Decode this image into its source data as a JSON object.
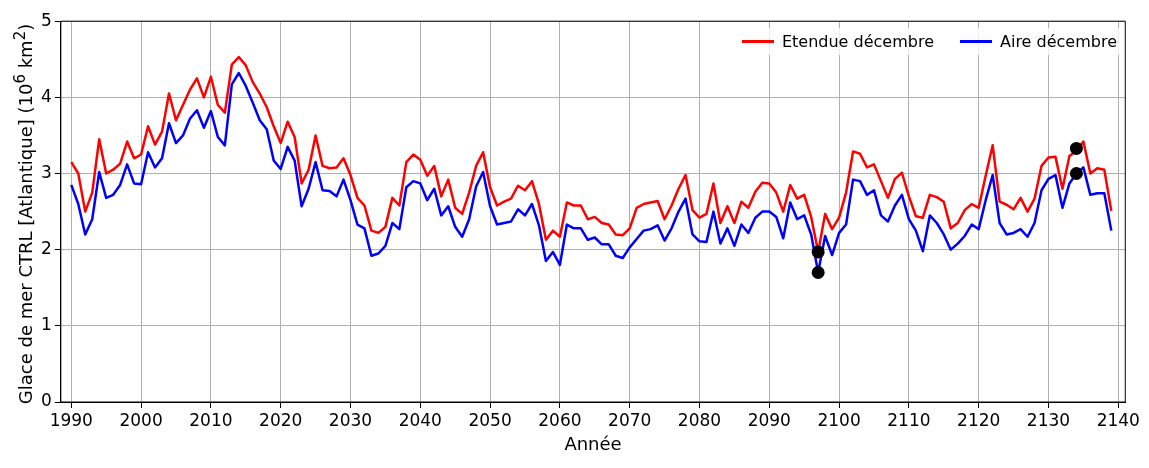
{
  "chart_data": {
    "type": "line",
    "xlabel": "Année",
    "ylabel": "Glace de mer CTRL [Atlantique] (10$^{6}$ km$^{2}$)",
    "x": [
      1990,
      1991,
      1992,
      1993,
      1994,
      1995,
      1996,
      1997,
      1998,
      1999,
      2000,
      2001,
      2002,
      2003,
      2004,
      2005,
      2006,
      2007,
      2008,
      2009,
      2010,
      2011,
      2012,
      2013,
      2014,
      2015,
      2016,
      2017,
      2018,
      2019,
      2020,
      2021,
      2022,
      2023,
      2024,
      2025,
      2026,
      2027,
      2028,
      2029,
      2030,
      2031,
      2032,
      2033,
      2034,
      2035,
      2036,
      2037,
      2038,
      2039,
      2040,
      2041,
      2042,
      2043,
      2044,
      2045,
      2046,
      2047,
      2048,
      2049,
      2050,
      2051,
      2052,
      2053,
      2054,
      2055,
      2056,
      2057,
      2058,
      2059,
      2060,
      2061,
      2062,
      2063,
      2064,
      2065,
      2066,
      2067,
      2068,
      2069,
      2070,
      2071,
      2072,
      2073,
      2074,
      2075,
      2076,
      2077,
      2078,
      2079,
      2080,
      2081,
      2082,
      2083,
      2084,
      2085,
      2086,
      2087,
      2088,
      2089,
      2090,
      2091,
      2092,
      2093,
      2094,
      2095,
      2096,
      2097,
      2098,
      2099,
      2100,
      2101,
      2102,
      2103,
      2104,
      2105,
      2106,
      2107,
      2108,
      2109,
      2110,
      2111,
      2112,
      2113,
      2114,
      2115,
      2116,
      2117,
      2118,
      2119,
      2120,
      2121,
      2122,
      2123,
      2124,
      2125,
      2126,
      2127,
      2128,
      2129,
      2130,
      2131,
      2132,
      2133,
      2134,
      2135,
      2136,
      2137,
      2138,
      2139
    ],
    "series": [
      {
        "name": "Etendue décembre",
        "color": "#ff0000",
        "values": [
          3.15,
          3.0,
          2.5,
          2.75,
          3.45,
          3.0,
          3.05,
          3.13,
          3.42,
          3.2,
          3.25,
          3.62,
          3.38,
          3.55,
          4.05,
          3.7,
          3.9,
          4.1,
          4.25,
          4.0,
          4.27,
          3.9,
          3.8,
          4.43,
          4.53,
          4.42,
          4.2,
          4.05,
          3.87,
          3.62,
          3.4,
          3.68,
          3.48,
          2.87,
          3.05,
          3.5,
          3.1,
          3.07,
          3.08,
          3.2,
          2.98,
          2.68,
          2.58,
          2.25,
          2.22,
          2.3,
          2.68,
          2.58,
          3.15,
          3.25,
          3.18,
          2.97,
          3.1,
          2.7,
          2.92,
          2.55,
          2.47,
          2.75,
          3.1,
          3.28,
          2.82,
          2.58,
          2.63,
          2.67,
          2.84,
          2.78,
          2.9,
          2.6,
          2.13,
          2.25,
          2.17,
          2.62,
          2.58,
          2.58,
          2.4,
          2.43,
          2.35,
          2.33,
          2.2,
          2.19,
          2.28,
          2.55,
          2.6,
          2.62,
          2.64,
          2.4,
          2.58,
          2.8,
          2.98,
          2.52,
          2.42,
          2.47,
          2.87,
          2.35,
          2.57,
          2.35,
          2.63,
          2.55,
          2.76,
          2.88,
          2.87,
          2.75,
          2.5,
          2.85,
          2.67,
          2.72,
          2.43,
          1.97,
          2.47,
          2.27,
          2.42,
          2.75,
          3.29,
          3.26,
          3.08,
          3.12,
          2.9,
          2.68,
          2.93,
          3.01,
          2.7,
          2.44,
          2.42,
          2.72,
          2.69,
          2.63,
          2.28,
          2.35,
          2.52,
          2.6,
          2.55,
          2.97,
          3.37,
          2.63,
          2.59,
          2.53,
          2.68,
          2.5,
          2.67,
          3.1,
          3.21,
          3.22,
          2.8,
          3.23,
          3.3,
          3.42,
          3.0,
          3.07,
          3.05,
          2.51
        ]
      },
      {
        "name": "Aire décembre",
        "color": "#0000ff",
        "values": [
          2.85,
          2.6,
          2.2,
          2.4,
          3.02,
          2.68,
          2.72,
          2.85,
          3.12,
          2.87,
          2.86,
          3.28,
          3.08,
          3.2,
          3.66,
          3.4,
          3.5,
          3.72,
          3.83,
          3.6,
          3.82,
          3.48,
          3.37,
          4.17,
          4.32,
          4.15,
          3.93,
          3.7,
          3.58,
          3.17,
          3.06,
          3.35,
          3.17,
          2.57,
          2.8,
          3.15,
          2.78,
          2.77,
          2.7,
          2.92,
          2.65,
          2.33,
          2.28,
          1.92,
          1.95,
          2.05,
          2.35,
          2.27,
          2.82,
          2.9,
          2.87,
          2.65,
          2.8,
          2.45,
          2.57,
          2.3,
          2.17,
          2.4,
          2.83,
          3.02,
          2.57,
          2.33,
          2.35,
          2.37,
          2.53,
          2.45,
          2.6,
          2.32,
          1.85,
          1.97,
          1.8,
          2.33,
          2.28,
          2.28,
          2.13,
          2.16,
          2.07,
          2.07,
          1.92,
          1.89,
          2.03,
          2.14,
          2.25,
          2.27,
          2.32,
          2.12,
          2.28,
          2.5,
          2.67,
          2.2,
          2.11,
          2.1,
          2.5,
          2.08,
          2.28,
          2.05,
          2.33,
          2.22,
          2.42,
          2.5,
          2.5,
          2.43,
          2.15,
          2.62,
          2.4,
          2.45,
          2.2,
          1.7,
          2.18,
          1.93,
          2.22,
          2.33,
          2.92,
          2.9,
          2.72,
          2.78,
          2.45,
          2.37,
          2.58,
          2.72,
          2.4,
          2.25,
          1.98,
          2.45,
          2.35,
          2.2,
          2.0,
          2.08,
          2.18,
          2.33,
          2.27,
          2.65,
          2.98,
          2.35,
          2.2,
          2.22,
          2.27,
          2.17,
          2.35,
          2.78,
          2.93,
          2.98,
          2.55,
          2.87,
          3.0,
          3.08,
          2.72,
          2.74,
          2.74,
          2.25
        ]
      },
      {
        "type": "scatter",
        "marker": "circle",
        "color": "#000000",
        "values": [
          null,
          null,
          null,
          null,
          null,
          null,
          null,
          null,
          null,
          null,
          null,
          null,
          null,
          null,
          null,
          null,
          null,
          null,
          null,
          null,
          null,
          null,
          null,
          null,
          null,
          null,
          null,
          null,
          null,
          null,
          null,
          null,
          null,
          null,
          null,
          null,
          null,
          null,
          null,
          null,
          null,
          null,
          null,
          null,
          null,
          null,
          null,
          null,
          null,
          null,
          null,
          null,
          null,
          null,
          null,
          null,
          null,
          null,
          null,
          null,
          null,
          null,
          null,
          null,
          null,
          null,
          null,
          null,
          null,
          null,
          null,
          null,
          null,
          null,
          null,
          null,
          null,
          null,
          null,
          null,
          null,
          null,
          null,
          null,
          null,
          null,
          null,
          null,
          null,
          null,
          null,
          null,
          null,
          null,
          null,
          null,
          null,
          null,
          null,
          null,
          null,
          null,
          null,
          null,
          null,
          null,
          null,
          1.97,
          null,
          null,
          null,
          null,
          null,
          null,
          null,
          null,
          null,
          null,
          null,
          null,
          null,
          null,
          null,
          null,
          null,
          null,
          null,
          null,
          null,
          null,
          null,
          null,
          null,
          null,
          null,
          null,
          null,
          null,
          null,
          null,
          null,
          null,
          null,
          null,
          3.33,
          null,
          null,
          null,
          null,
          null
        ]
      },
      {
        "type": "scatter",
        "marker": "circle",
        "color": "#000000",
        "values": [
          null,
          null,
          null,
          null,
          null,
          null,
          null,
          null,
          null,
          null,
          null,
          null,
          null,
          null,
          null,
          null,
          null,
          null,
          null,
          null,
          null,
          null,
          null,
          null,
          null,
          null,
          null,
          null,
          null,
          null,
          null,
          null,
          null,
          null,
          null,
          null,
          null,
          null,
          null,
          null,
          null,
          null,
          null,
          null,
          null,
          null,
          null,
          null,
          null,
          null,
          null,
          null,
          null,
          null,
          null,
          null,
          null,
          null,
          null,
          null,
          null,
          null,
          null,
          null,
          null,
          null,
          null,
          null,
          null,
          null,
          null,
          null,
          null,
          null,
          null,
          null,
          null,
          null,
          null,
          null,
          null,
          null,
          null,
          null,
          null,
          null,
          null,
          null,
          null,
          null,
          null,
          null,
          null,
          null,
          null,
          null,
          null,
          null,
          null,
          null,
          null,
          null,
          null,
          null,
          null,
          null,
          null,
          1.7,
          null,
          null,
          null,
          null,
          null,
          null,
          null,
          null,
          null,
          null,
          null,
          null,
          null,
          null,
          null,
          null,
          null,
          null,
          null,
          null,
          null,
          null,
          null,
          null,
          null,
          null,
          null,
          null,
          null,
          null,
          null,
          null,
          null,
          null,
          null,
          null,
          3.0,
          null,
          null,
          null,
          null,
          null
        ]
      }
    ],
    "xlim": [
      1988.5,
      2141
    ],
    "xticks": [
      1990,
      2000,
      2010,
      2020,
      2030,
      2040,
      2050,
      2060,
      2070,
      2080,
      2090,
      2100,
      2110,
      2120,
      2130,
      2140
    ],
    "ylim": [
      0,
      5
    ],
    "yticks": [
      0,
      1,
      2,
      3,
      4,
      5
    ],
    "grid": true,
    "legend": "top right",
    "marker": "none",
    "line_style": "solid"
  }
}
